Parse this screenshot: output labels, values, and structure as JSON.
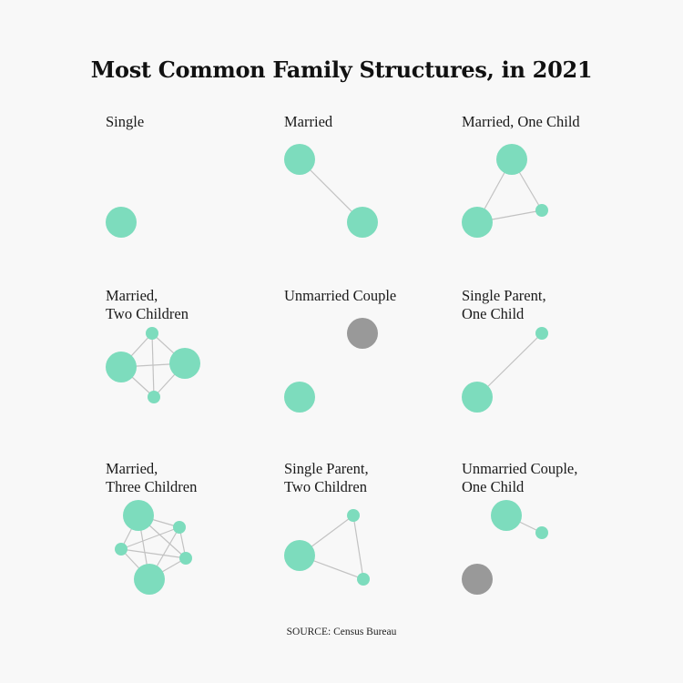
{
  "title": "Most Common Family Structures, in 2021",
  "source": "SOURCE: Census Bureau",
  "colors": {
    "adult": "#7ddcbd",
    "unmarried_other": "#999999",
    "edge": "#c2c2c2",
    "background": "#f8f8f8"
  },
  "panels": [
    {
      "id": "single",
      "label_lines": [
        "Single"
      ],
      "members": [
        "adult"
      ]
    },
    {
      "id": "married",
      "label_lines": [
        "Married"
      ],
      "members": [
        "adult",
        "adult"
      ]
    },
    {
      "id": "married-one-child",
      "label_lines": [
        "Married, One Child"
      ],
      "members": [
        "adult",
        "adult",
        "child"
      ]
    },
    {
      "id": "married-two-children",
      "label_lines": [
        "Married,",
        "Two Children"
      ],
      "members": [
        "adult",
        "adult",
        "child",
        "child"
      ]
    },
    {
      "id": "unmarried-couple",
      "label_lines": [
        "Unmarried Couple"
      ],
      "members": [
        "adult",
        "unmarried partner"
      ]
    },
    {
      "id": "single-parent-one-child",
      "label_lines": [
        "Single Parent,",
        "One Child"
      ],
      "members": [
        "adult",
        "child"
      ]
    },
    {
      "id": "married-three-children",
      "label_lines": [
        "Married,",
        "Three Children"
      ],
      "members": [
        "adult",
        "adult",
        "child",
        "child",
        "child"
      ]
    },
    {
      "id": "single-parent-two-children",
      "label_lines": [
        "Single Parent,",
        "Two Children"
      ],
      "members": [
        "adult",
        "child",
        "child"
      ]
    },
    {
      "id": "unmarried-couple-one-child",
      "label_lines": [
        "Unmarried Couple,",
        "One Child"
      ],
      "members": [
        "adult",
        "child",
        "unmarried partner"
      ]
    }
  ]
}
